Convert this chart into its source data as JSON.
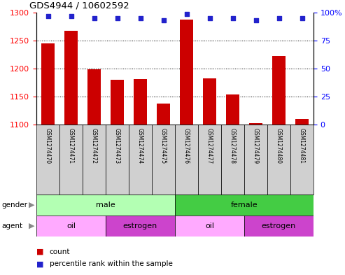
{
  "title": "GDS4944 / 10602592",
  "samples": [
    "GSM1274470",
    "GSM1274471",
    "GSM1274472",
    "GSM1274473",
    "GSM1274474",
    "GSM1274475",
    "GSM1274476",
    "GSM1274477",
    "GSM1274478",
    "GSM1274479",
    "GSM1274480",
    "GSM1274481"
  ],
  "counts": [
    1245,
    1268,
    1199,
    1180,
    1181,
    1138,
    1288,
    1183,
    1154,
    1102,
    1222,
    1110
  ],
  "percentile_ranks": [
    97,
    97,
    95,
    95,
    95,
    93,
    99,
    95,
    95,
    93,
    95,
    95
  ],
  "ylim_left": [
    1100,
    1300
  ],
  "ylim_right": [
    0,
    100
  ],
  "yticks_left": [
    1100,
    1150,
    1200,
    1250,
    1300
  ],
  "yticks_right": [
    0,
    25,
    50,
    75,
    100
  ],
  "bar_color": "#cc0000",
  "dot_color": "#2222cc",
  "bar_bottom": 1100,
  "gender_male_color": "#b3ffb3",
  "gender_female_color": "#44cc44",
  "agent_oil_color": "#ffaaff",
  "agent_estrogen_color": "#cc44cc",
  "gender_groups": [
    {
      "label": "male",
      "start": 0,
      "end": 6
    },
    {
      "label": "female",
      "start": 6,
      "end": 12
    }
  ],
  "agent_groups": [
    {
      "label": "oil",
      "start": 0,
      "end": 3
    },
    {
      "label": "estrogen",
      "start": 3,
      "end": 6
    },
    {
      "label": "oil",
      "start": 6,
      "end": 9
    },
    {
      "label": "estrogen",
      "start": 9,
      "end": 12
    }
  ],
  "tick_area_color": "#d0d0d0",
  "legend_count_color": "#cc0000",
  "legend_dot_color": "#2222cc",
  "gridline_ticks": [
    1150,
    1200,
    1250
  ]
}
